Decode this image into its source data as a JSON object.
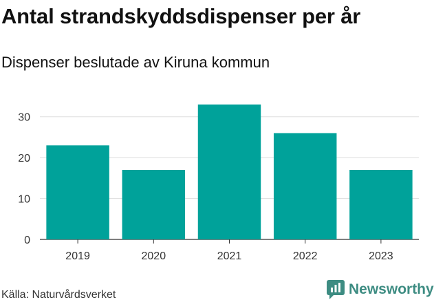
{
  "title": "Antal strandskyddsdispenser per år",
  "subtitle": "Dispenser beslutade av Kiruna kommun",
  "source": "Källa: Naturvårdsverket",
  "logo": {
    "text": "Newsworthy",
    "icon": "newsworthy-logo-icon",
    "color": "#3d8c82"
  },
  "chart_data": {
    "type": "bar",
    "categories": [
      "2019",
      "2020",
      "2021",
      "2022",
      "2023"
    ],
    "values": [
      23,
      17,
      33,
      26,
      17
    ],
    "title": "Antal strandskyddsdispenser per år",
    "subtitle": "Dispenser beslutade av Kiruna kommun",
    "xlabel": "",
    "ylabel": "",
    "ylim": [
      0,
      35
    ],
    "yticks": [
      0,
      10,
      20,
      30
    ],
    "grid": true,
    "bar_color": "#00a29a"
  }
}
